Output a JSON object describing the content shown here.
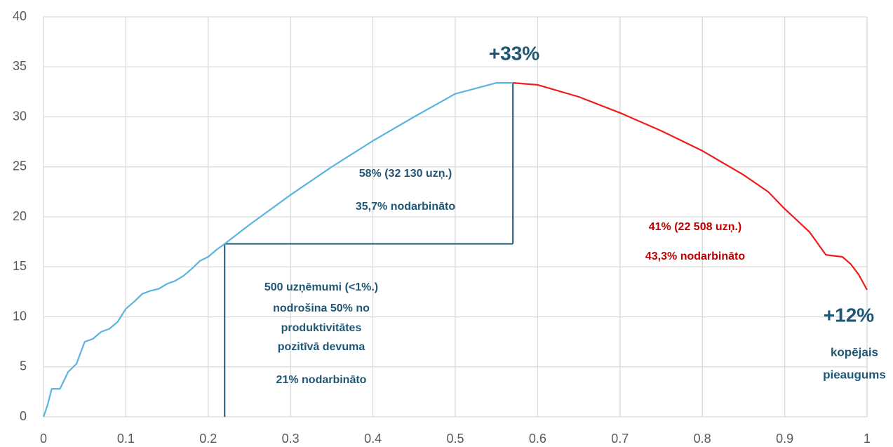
{
  "chart_data": {
    "type": "line",
    "x": [
      0,
      0.005,
      0.01,
      0.02,
      0.03,
      0.04,
      0.05,
      0.06,
      0.07,
      0.08,
      0.09,
      0.1,
      0.11,
      0.12,
      0.13,
      0.14,
      0.15,
      0.16,
      0.17,
      0.18,
      0.19,
      0.2,
      0.21,
      0.22,
      0.25,
      0.3,
      0.35,
      0.4,
      0.45,
      0.5,
      0.55,
      0.57,
      0.6,
      0.65,
      0.7,
      0.75,
      0.8,
      0.85,
      0.88,
      0.9,
      0.93,
      0.95,
      0.97,
      0.98,
      0.99,
      1.0
    ],
    "series": [
      {
        "color": "#5bb4e0",
        "values": [
          0,
          1.2,
          2.8,
          2.8,
          4.5,
          5.3,
          7.5,
          7.8,
          8.5,
          8.8,
          9.5,
          10.8,
          11.5,
          12.3,
          12.6,
          12.8,
          13.3,
          13.6,
          14.1,
          14.8,
          15.6,
          16.0,
          16.7,
          17.3,
          19.2,
          22.2,
          25.0,
          27.6,
          30.0,
          32.3,
          33.4,
          33.4,
          null,
          null,
          null,
          null,
          null,
          null,
          null,
          null,
          null,
          null,
          null,
          null,
          null,
          null
        ]
      },
      {
        "color": "#ee1c1c",
        "values": [
          null,
          null,
          null,
          null,
          null,
          null,
          null,
          null,
          null,
          null,
          null,
          null,
          null,
          null,
          null,
          null,
          null,
          null,
          null,
          null,
          null,
          null,
          null,
          null,
          null,
          null,
          null,
          null,
          null,
          null,
          null,
          33.4,
          33.2,
          32.0,
          30.4,
          28.6,
          26.6,
          24.2,
          22.5,
          20.8,
          18.5,
          16.2,
          16.0,
          15.3,
          14.2,
          12.7
        ]
      }
    ],
    "xlim": [
      0,
      1
    ],
    "ylim": [
      0,
      40
    ],
    "xticks": [
      0,
      0.1,
      0.2,
      0.3,
      0.4,
      0.5,
      0.6,
      0.7,
      0.8,
      0.9,
      1
    ],
    "yticks": [
      0,
      5,
      10,
      15,
      20,
      25,
      30,
      35,
      40
    ],
    "grid": true,
    "reference_lines": [
      {
        "x": 0.22,
        "y": 17.3
      },
      {
        "x": 0.57,
        "y": 33.4
      }
    ],
    "annotations": [
      {
        "text": "+33%",
        "color": "#1f5673"
      },
      {
        "text": "58% (32 130 uzņ.)",
        "color": "#1f5673"
      },
      {
        "text": "35,7% nodarbināto",
        "color": "#1f5673"
      },
      {
        "text": "41% (22 508 uzņ.)",
        "color": "#c00000"
      },
      {
        "text": "43,3% nodarbināto",
        "color": "#c00000"
      },
      {
        "text": "500 uzņēmumi (<1%.)",
        "color": "#1f5673"
      },
      {
        "text": "nodrošina 50% no",
        "color": "#1f5673"
      },
      {
        "text": "produktivitātes",
        "color": "#1f5673"
      },
      {
        "text": "pozitīvā devuma",
        "color": "#1f5673"
      },
      {
        "text": "21% nodarbināto",
        "color": "#1f5673"
      },
      {
        "text": "+12%",
        "color": "#1f5673"
      },
      {
        "text": "kopējais",
        "color": "#1f5673"
      },
      {
        "text": "pieaugums",
        "color": "#1f5673"
      }
    ]
  }
}
